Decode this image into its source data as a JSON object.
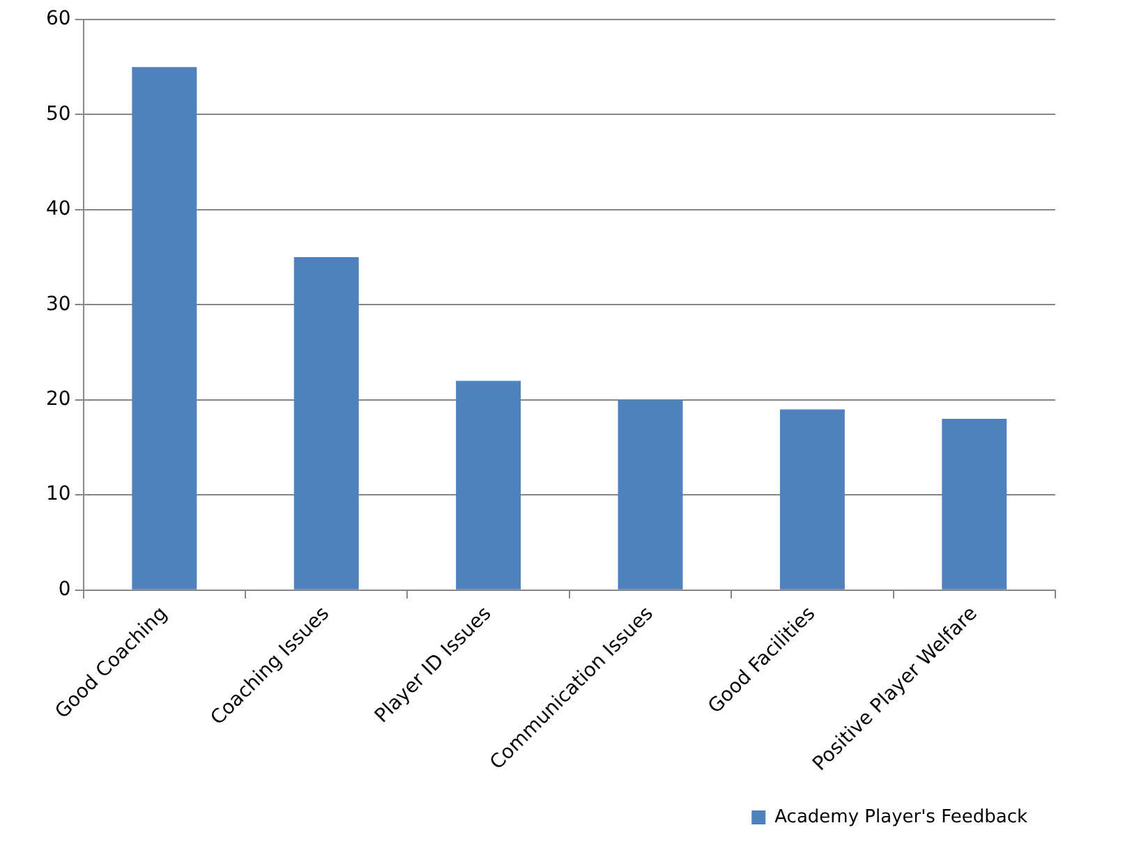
{
  "chart_data": {
    "type": "bar",
    "categories": [
      "Good Coaching",
      "Coaching Issues",
      "Player ID Issues",
      "Communication Issues",
      "Good Facilities",
      "Positive Player Welfare"
    ],
    "series": [
      {
        "name": "Academy Player's Feedback",
        "color": "#4f81bd",
        "values": [
          55,
          35,
          22,
          20,
          19,
          18
        ]
      }
    ],
    "ylim": [
      0,
      60
    ],
    "yticks": [
      0,
      10,
      20,
      30,
      40,
      50,
      60
    ],
    "grid": "y",
    "legend": "bottom right"
  }
}
